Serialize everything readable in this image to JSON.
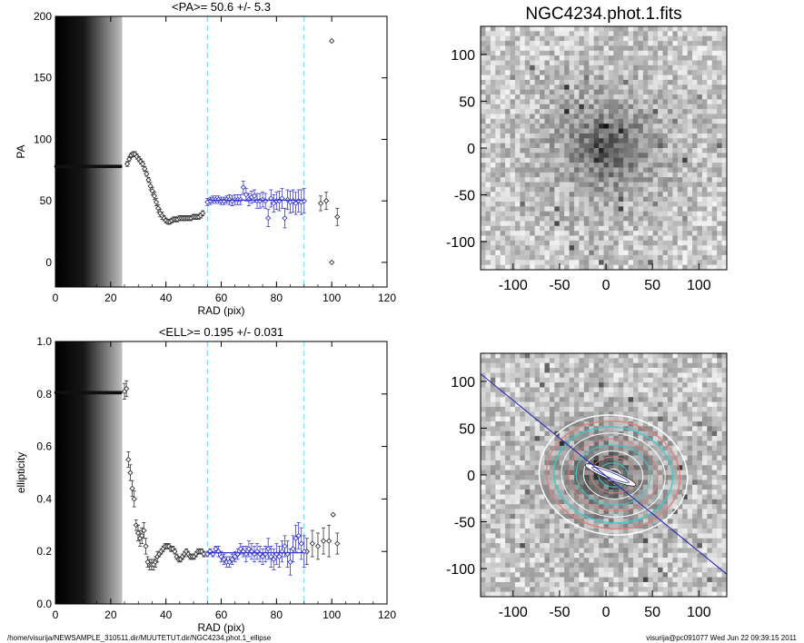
{
  "chart_data": [
    {
      "type": "scatter",
      "title": "<PA>=  50.6 +/-   5.3",
      "xlabel": "RAD (pix)",
      "ylabel": "PA",
      "xlim": [
        0,
        120
      ],
      "ylim": [
        -20,
        200
      ],
      "xticks": [
        "0",
        "20",
        "40",
        "60",
        "80",
        "100",
        "120"
      ],
      "yticks": [
        "0",
        "50",
        "100",
        "150",
        "200"
      ],
      "vlines": [
        55,
        90
      ],
      "mean_line": {
        "x": [
          55,
          90
        ],
        "y": 50.6
      },
      "series": [
        {
          "color": "#333333",
          "x": [
            26,
            26.7,
            27.4,
            28.1,
            28.8,
            29.5,
            30.2,
            30.9,
            31.6,
            32.3,
            33,
            33.7,
            34.4,
            35.1,
            35.8,
            36.5,
            37.2,
            37.9,
            38.6,
            39.3,
            40,
            40.7,
            41.4,
            42.1,
            42.8,
            43.5,
            44.2,
            44.9,
            45.6,
            46.3,
            47,
            47.7,
            48.4,
            49.1,
            49.8,
            50.5,
            51.2,
            51.9,
            52.6,
            53.3,
            96,
            98,
            100,
            100,
            102
          ],
          "y": [
            80,
            84,
            87,
            88,
            88,
            86,
            84,
            82,
            80,
            76,
            72,
            67,
            62,
            58,
            54,
            49,
            44,
            40,
            38,
            36,
            34,
            33,
            33,
            34,
            35,
            35,
            35,
            36,
            36,
            36,
            36,
            36,
            36,
            36,
            37,
            37,
            37,
            37,
            38,
            40,
            48,
            50,
            180,
            0,
            37
          ],
          "errors": [
            2,
            2,
            2,
            2,
            2,
            2,
            2,
            2,
            2,
            2,
            2,
            2,
            3,
            3,
            3,
            3,
            3,
            3,
            3,
            2,
            2,
            2,
            2,
            2,
            2,
            2,
            2,
            2,
            2,
            2,
            2,
            2,
            2,
            2,
            2,
            2,
            2,
            2,
            2,
            2,
            6,
            7,
            0,
            0,
            7
          ]
        },
        {
          "color": "#3a3ad0",
          "x": [
            55,
            56,
            57,
            58,
            59,
            60,
            61,
            62,
            63,
            64,
            65,
            66,
            67,
            68,
            69,
            70,
            71,
            72,
            73,
            74,
            75,
            76,
            77,
            78,
            79,
            80,
            81,
            82,
            83,
            84,
            85,
            86,
            87,
            88,
            89,
            90
          ],
          "y": [
            49,
            50,
            51,
            51,
            51,
            50,
            50,
            51,
            51,
            50,
            51,
            51,
            51,
            61,
            55,
            51,
            53,
            54,
            50,
            50,
            51,
            50,
            36,
            52,
            48,
            50,
            50,
            52,
            36,
            51,
            49,
            50,
            48,
            50,
            49,
            50
          ],
          "errors": [
            3,
            3,
            3,
            3,
            3,
            3,
            3,
            3,
            4,
            4,
            4,
            4,
            4,
            5,
            5,
            5,
            5,
            5,
            6,
            6,
            6,
            6,
            7,
            7,
            7,
            7,
            8,
            8,
            8,
            8,
            9,
            9,
            9,
            9,
            10,
            10
          ]
        }
      ]
    },
    {
      "type": "scatter",
      "title": "<ELL>= 0.195 +/-  0.031",
      "xlabel": "RAD (pix)",
      "ylabel": "ellipticity",
      "xlim": [
        0,
        120
      ],
      "ylim": [
        0,
        1
      ],
      "xticks": [
        "0",
        "20",
        "40",
        "60",
        "80",
        "100",
        "120"
      ],
      "yticks": [
        "0.0",
        "0.2",
        "0.4",
        "0.6",
        "0.8",
        "1.0"
      ],
      "vlines": [
        55,
        90
      ],
      "mean_line": {
        "x": [
          55,
          90
        ],
        "y": 0.195
      },
      "series": [
        {
          "color": "#333333",
          "x": [
            25,
            25.7,
            26.4,
            27.1,
            27.8,
            28.5,
            29.2,
            29.9,
            30.6,
            31.3,
            32,
            32.7,
            33.4,
            34.1,
            34.8,
            35.5,
            36.2,
            36.9,
            37.6,
            38.3,
            39,
            39.7,
            40.4,
            41.1,
            41.8,
            42.5,
            43.2,
            43.9,
            44.6,
            45.3,
            46,
            46.7,
            47.4,
            48.1,
            48.8,
            49.5,
            50.2,
            50.9,
            51.6,
            52.3,
            53,
            53.7,
            91,
            93,
            95,
            97,
            99,
            100.5,
            102
          ],
          "y": [
            0.81,
            0.82,
            0.55,
            0.5,
            0.44,
            0.4,
            0.3,
            0.27,
            0.25,
            0.26,
            0.28,
            0.22,
            0.16,
            0.15,
            0.15,
            0.15,
            0.16,
            0.18,
            0.19,
            0.2,
            0.21,
            0.22,
            0.22,
            0.22,
            0.21,
            0.21,
            0.2,
            0.18,
            0.17,
            0.17,
            0.18,
            0.19,
            0.2,
            0.19,
            0.18,
            0.18,
            0.18,
            0.19,
            0.2,
            0.2,
            0.2,
            0.19,
            0.2,
            0.23,
            0.22,
            0.24,
            0.24,
            0.34,
            0.23
          ],
          "errors": [
            0.03,
            0.03,
            0.03,
            0.03,
            0.03,
            0.03,
            0.02,
            0.03,
            0.03,
            0.03,
            0.03,
            0.03,
            0.02,
            0.02,
            0.02,
            0.02,
            0.02,
            0.02,
            0.01,
            0.01,
            0.01,
            0.01,
            0.01,
            0.01,
            0.01,
            0.01,
            0.01,
            0.01,
            0.01,
            0.01,
            0.01,
            0.01,
            0.01,
            0.01,
            0.01,
            0.01,
            0.01,
            0.01,
            0.01,
            0.01,
            0.01,
            0.01,
            0.05,
            0.05,
            0.05,
            0.05,
            0.06,
            0,
            0.04
          ]
        },
        {
          "color": "#3a3ad0",
          "x": [
            55,
            56,
            57,
            58,
            59,
            60,
            61,
            62,
            63,
            64,
            65,
            66,
            67,
            68,
            69,
            70,
            71,
            72,
            73,
            74,
            75,
            76,
            77,
            78,
            79,
            80,
            81,
            82,
            83,
            84,
            85,
            86,
            87,
            88,
            89,
            90
          ],
          "y": [
            0.19,
            0.2,
            0.19,
            0.21,
            0.2,
            0.18,
            0.17,
            0.16,
            0.16,
            0.17,
            0.18,
            0.19,
            0.21,
            0.2,
            0.19,
            0.21,
            0.2,
            0.19,
            0.2,
            0.19,
            0.18,
            0.19,
            0.21,
            0.18,
            0.17,
            0.19,
            0.18,
            0.2,
            0.22,
            0.19,
            0.16,
            0.21,
            0.25,
            0.26,
            0.23,
            0.2
          ],
          "errors": [
            0.01,
            0.01,
            0.01,
            0.01,
            0.02,
            0.02,
            0.02,
            0.02,
            0.02,
            0.02,
            0.02,
            0.02,
            0.02,
            0.02,
            0.03,
            0.03,
            0.03,
            0.03,
            0.03,
            0.03,
            0.03,
            0.03,
            0.04,
            0.04,
            0.04,
            0.04,
            0.04,
            0.04,
            0.04,
            0.05,
            0.05,
            0.05,
            0.05,
            0.05,
            0.06,
            0.06
          ]
        }
      ]
    },
    {
      "type": "heatmap",
      "title": "NGC4234.phot.1.fits",
      "xlim": [
        -135,
        130
      ],
      "ylim": [
        -130,
        130
      ],
      "xticks": [
        "-100",
        "-50",
        "0",
        "50",
        "100"
      ],
      "yticks": [
        "-100",
        "-50",
        "0",
        "50",
        "100"
      ],
      "colormap": "inverted grayscale"
    },
    {
      "type": "heatmap",
      "xlim": [
        -135,
        130
      ],
      "ylim": [
        -130,
        130
      ],
      "xticks": [
        "-100",
        "-50",
        "0",
        "50",
        "100"
      ],
      "yticks": [
        "-100",
        "-50",
        "0",
        "50",
        "100"
      ],
      "overlay": {
        "ellipse_pa_deg": 50.6,
        "ellipticity": 0.195,
        "contour_colors": [
          "#ffffff",
          "#40c8c8",
          "#e08080"
        ],
        "line_color": "#2d2db4"
      }
    }
  ],
  "footer": {
    "left": "/home/visurija/NEWSAMPLE_310511.dir/MUUTETUT.dir/NGC4234.phot.1_ellipse",
    "right": "visurija@pc091077  Wed Jun 22 09:39:15 2011"
  }
}
